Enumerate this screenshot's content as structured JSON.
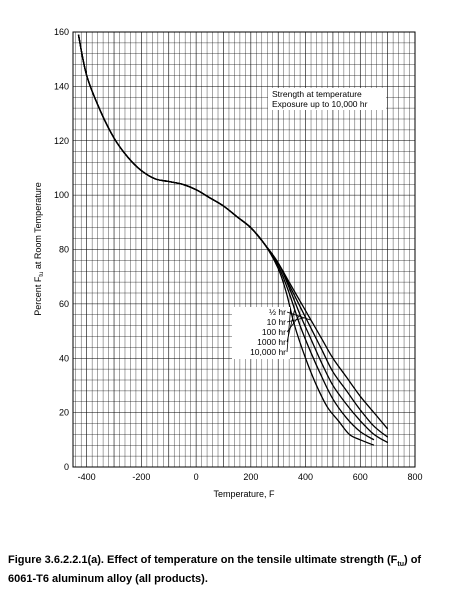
{
  "chart_data": {
    "type": "line",
    "xlabel": "Temperature, F",
    "ylabel": "Percent F",
    "ylabel_sub": "tu",
    "ylabel_rest": " at Room Temperature",
    "xlim": [
      -450,
      800
    ],
    "ylim": [
      0,
      160
    ],
    "x_ticks": [
      -400,
      -200,
      0,
      200,
      400,
      600,
      800
    ],
    "x_tick_labels": [
      "-400",
      "-200",
      "0",
      "200",
      "400",
      "600",
      "800"
    ],
    "y_ticks": [
      0,
      20,
      40,
      60,
      80,
      100,
      120,
      140,
      160
    ],
    "y_tick_labels": [
      "0",
      "20",
      "40",
      "60",
      "80",
      "100",
      "120",
      "140",
      "160"
    ],
    "grid": true,
    "annotation_lines": [
      "Strength at temperature",
      "Exposure up to 10,000 hr"
    ],
    "series": [
      {
        "name": "½ hr",
        "x": [
          -430,
          -400,
          -350,
          -300,
          -250,
          -200,
          -150,
          -100,
          -50,
          0,
          50,
          100,
          150,
          200,
          250,
          300,
          340,
          380,
          420,
          460,
          500,
          550,
          600,
          650,
          700
        ],
        "y": [
          159,
          144,
          131,
          121,
          114,
          109,
          106,
          105,
          104,
          102,
          99,
          96,
          92,
          88,
          82,
          75,
          68,
          61,
          54,
          47,
          40,
          33,
          26,
          20,
          14
        ]
      },
      {
        "name": "10 hr",
        "x": [
          -430,
          -400,
          -350,
          -300,
          -250,
          -200,
          -150,
          -100,
          -50,
          0,
          50,
          100,
          150,
          200,
          250,
          300,
          340,
          380,
          420,
          460,
          500,
          550,
          600,
          650,
          700
        ],
        "y": [
          159,
          144,
          131,
          121,
          114,
          109,
          106,
          105,
          104,
          102,
          99,
          96,
          92,
          88,
          82,
          75,
          67,
          59,
          51,
          43,
          35,
          28,
          21,
          15,
          11
        ]
      },
      {
        "name": "100 hr",
        "x": [
          -430,
          -400,
          -350,
          -300,
          -250,
          -200,
          -150,
          -100,
          -50,
          0,
          50,
          100,
          150,
          200,
          250,
          300,
          340,
          380,
          420,
          460,
          500,
          550,
          600,
          650,
          700
        ],
        "y": [
          159,
          144,
          131,
          121,
          114,
          109,
          106,
          105,
          104,
          102,
          99,
          96,
          92,
          88,
          82,
          75,
          66,
          56,
          47,
          38,
          30,
          23,
          17,
          12,
          9
        ]
      },
      {
        "name": "1000 hr",
        "x": [
          -430,
          -400,
          -350,
          -300,
          -250,
          -200,
          -150,
          -100,
          -50,
          0,
          50,
          100,
          150,
          200,
          250,
          300,
          340,
          380,
          420,
          460,
          500,
          550,
          600,
          650
        ],
        "y": [
          159,
          144,
          131,
          121,
          114,
          109,
          106,
          105,
          104,
          102,
          99,
          96,
          92,
          88,
          82,
          74,
          64,
          52,
          42,
          33,
          25,
          18,
          13,
          10
        ]
      },
      {
        "name": "10,000 hr",
        "x": [
          -430,
          -400,
          -350,
          -300,
          -250,
          -200,
          -150,
          -100,
          -50,
          0,
          50,
          100,
          150,
          200,
          250,
          300,
          330,
          360,
          400,
          440,
          480,
          520,
          560,
          600,
          650
        ],
        "y": [
          159,
          144,
          131,
          121,
          114,
          109,
          106,
          105,
          104,
          102,
          99,
          96,
          92,
          88,
          82,
          73,
          64,
          52,
          40,
          30,
          22,
          17,
          12,
          10,
          8
        ]
      }
    ]
  },
  "caption": {
    "line1": "Figure 3.6.2.2.1(a).  Effect of temperature on the tensile ultimate strength (F",
    "sub": "tu",
    "line1_end": ") of",
    "line2": "6061-T6 aluminum alloy (all products)."
  }
}
